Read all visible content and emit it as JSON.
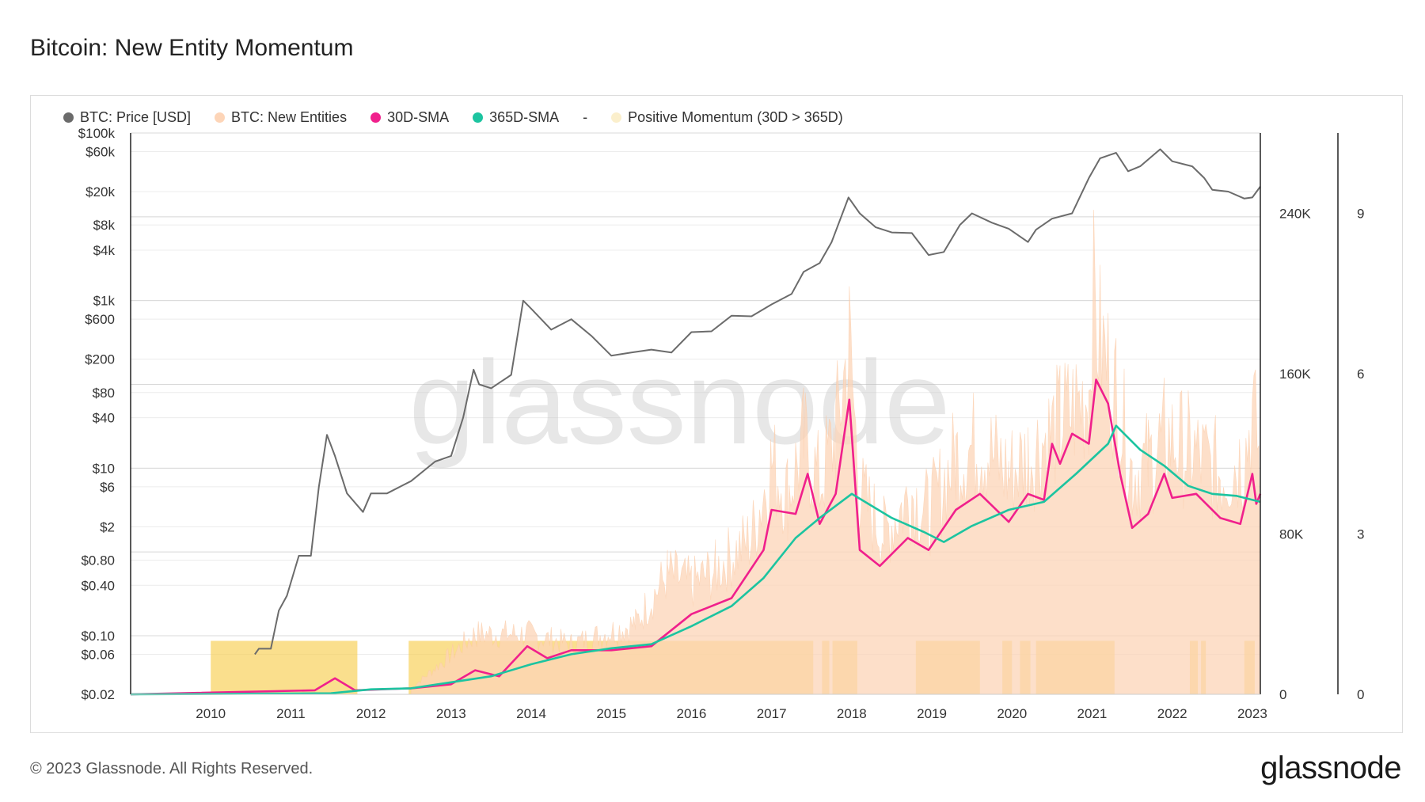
{
  "page": {
    "title": "Bitcoin: New Entity Momentum",
    "footer": "© 2023 Glassnode. All Rights Reserved.",
    "brand": "glassnode",
    "watermark": "glassnode"
  },
  "legend": [
    {
      "label": "BTC: Price [USD]",
      "color": "#6b6b6b"
    },
    {
      "label": "BTC: New Entities",
      "color": "#fdd5b8"
    },
    {
      "label": "30D-SMA",
      "color": "#f0208c"
    },
    {
      "label": "365D-SMA",
      "color": "#1cc4a0"
    },
    {
      "label": "-",
      "color": ""
    },
    {
      "label": "Positive Momentum (30D > 365D)",
      "color": "#fbefcc"
    }
  ],
  "chart_data": {
    "type": "line",
    "title": "Bitcoin: New Entity Momentum",
    "x_range": [
      2009.0,
      2023.1
    ],
    "x_ticks": [
      "2010",
      "2011",
      "2012",
      "2013",
      "2014",
      "2015",
      "2016",
      "2017",
      "2018",
      "2019",
      "2020",
      "2021",
      "2022",
      "2023"
    ],
    "y_left": {
      "scale": "log",
      "range": [
        0.02,
        100000
      ],
      "ticks": [
        {
          "v": 100000,
          "label": "$100k"
        },
        {
          "v": 60000,
          "label": "$60k"
        },
        {
          "v": 20000,
          "label": "$20k"
        },
        {
          "v": 8000,
          "label": "$8k"
        },
        {
          "v": 4000,
          "label": "$4k"
        },
        {
          "v": 1000,
          "label": "$1k"
        },
        {
          "v": 600,
          "label": "$600"
        },
        {
          "v": 200,
          "label": "$200"
        },
        {
          "v": 80,
          "label": "$80"
        },
        {
          "v": 40,
          "label": "$40"
        },
        {
          "v": 10,
          "label": "$10"
        },
        {
          "v": 6,
          "label": "$6"
        },
        {
          "v": 2,
          "label": "$2"
        },
        {
          "v": 0.8,
          "label": "$0.80"
        },
        {
          "v": 0.4,
          "label": "$0.40"
        },
        {
          "v": 0.1,
          "label": "$0.10"
        },
        {
          "v": 0.06,
          "label": "$0.06"
        },
        {
          "v": 0.02,
          "label": "$0.02"
        }
      ]
    },
    "y_right": {
      "scale": "linear",
      "range": [
        0,
        280000
      ],
      "ticks": [
        {
          "v": 240000,
          "label": "240K"
        },
        {
          "v": 160000,
          "label": "160K"
        },
        {
          "v": 80000,
          "label": "80K"
        },
        {
          "v": 0,
          "label": "0"
        }
      ]
    },
    "y_right2": {
      "scale": "linear",
      "range": [
        0,
        10.5
      ],
      "ticks": [
        {
          "v": 9,
          "label": "9"
        },
        {
          "v": 6,
          "label": "6"
        },
        {
          "v": 3,
          "label": "3"
        },
        {
          "v": 0,
          "label": "0"
        }
      ]
    },
    "series": [
      {
        "name": "BTC: Price [USD]",
        "axis": "left",
        "color": "#6b6b6b",
        "points": [
          [
            2010.55,
            0.06
          ],
          [
            2010.6,
            0.07
          ],
          [
            2010.75,
            0.07
          ],
          [
            2010.85,
            0.2
          ],
          [
            2010.95,
            0.3
          ],
          [
            2011.1,
            0.9
          ],
          [
            2011.25,
            0.9
          ],
          [
            2011.35,
            6
          ],
          [
            2011.45,
            25
          ],
          [
            2011.55,
            14
          ],
          [
            2011.7,
            5
          ],
          [
            2011.9,
            3
          ],
          [
            2012.0,
            5
          ],
          [
            2012.2,
            5
          ],
          [
            2012.5,
            7
          ],
          [
            2012.8,
            12
          ],
          [
            2013.0,
            14
          ],
          [
            2013.15,
            40
          ],
          [
            2013.28,
            150
          ],
          [
            2013.35,
            100
          ],
          [
            2013.5,
            90
          ],
          [
            2013.75,
            130
          ],
          [
            2013.9,
            1000
          ],
          [
            2014.0,
            800
          ],
          [
            2014.25,
            450
          ],
          [
            2014.5,
            600
          ],
          [
            2014.75,
            380
          ],
          [
            2015.0,
            220
          ],
          [
            2015.25,
            240
          ],
          [
            2015.5,
            260
          ],
          [
            2015.75,
            240
          ],
          [
            2016.0,
            420
          ],
          [
            2016.25,
            430
          ],
          [
            2016.5,
            660
          ],
          [
            2016.75,
            650
          ],
          [
            2017.0,
            900
          ],
          [
            2017.25,
            1200
          ],
          [
            2017.4,
            2200
          ],
          [
            2017.6,
            2800
          ],
          [
            2017.75,
            5000
          ],
          [
            2017.96,
            17000
          ],
          [
            2018.1,
            11000
          ],
          [
            2018.3,
            7500
          ],
          [
            2018.5,
            6500
          ],
          [
            2018.75,
            6400
          ],
          [
            2018.96,
            3500
          ],
          [
            2019.15,
            3800
          ],
          [
            2019.35,
            8000
          ],
          [
            2019.5,
            11000
          ],
          [
            2019.75,
            8500
          ],
          [
            2019.96,
            7200
          ],
          [
            2020.2,
            5000
          ],
          [
            2020.3,
            7000
          ],
          [
            2020.5,
            9500
          ],
          [
            2020.75,
            11000
          ],
          [
            2020.96,
            29000
          ],
          [
            2021.1,
            50000
          ],
          [
            2021.3,
            58000
          ],
          [
            2021.45,
            35000
          ],
          [
            2021.6,
            40000
          ],
          [
            2021.85,
            64000
          ],
          [
            2022.0,
            46000
          ],
          [
            2022.25,
            40000
          ],
          [
            2022.4,
            29000
          ],
          [
            2022.5,
            21000
          ],
          [
            2022.7,
            20000
          ],
          [
            2022.9,
            16500
          ],
          [
            2023.0,
            17000
          ],
          [
            2023.1,
            23000
          ]
        ]
      },
      {
        "name": "30D-SMA",
        "axis": "right",
        "color": "#f0208c",
        "points": [
          [
            2009.0,
            0
          ],
          [
            2011.3,
            2000
          ],
          [
            2011.55,
            8000
          ],
          [
            2011.8,
            2000
          ],
          [
            2012.5,
            3000
          ],
          [
            2013.0,
            5000
          ],
          [
            2013.3,
            12000
          ],
          [
            2013.6,
            9000
          ],
          [
            2013.95,
            24000
          ],
          [
            2014.2,
            18000
          ],
          [
            2014.5,
            22000
          ],
          [
            2015.0,
            22000
          ],
          [
            2015.5,
            24000
          ],
          [
            2016.0,
            40000
          ],
          [
            2016.5,
            48000
          ],
          [
            2016.9,
            72000
          ],
          [
            2017.0,
            92000
          ],
          [
            2017.3,
            90000
          ],
          [
            2017.45,
            110000
          ],
          [
            2017.6,
            85000
          ],
          [
            2017.8,
            100000
          ],
          [
            2017.97,
            147000
          ],
          [
            2018.1,
            72000
          ],
          [
            2018.35,
            64000
          ],
          [
            2018.7,
            78000
          ],
          [
            2018.96,
            72000
          ],
          [
            2019.3,
            92000
          ],
          [
            2019.6,
            100000
          ],
          [
            2019.96,
            86000
          ],
          [
            2020.2,
            100000
          ],
          [
            2020.4,
            97000
          ],
          [
            2020.5,
            125000
          ],
          [
            2020.6,
            115000
          ],
          [
            2020.75,
            130000
          ],
          [
            2020.96,
            125000
          ],
          [
            2021.05,
            157000
          ],
          [
            2021.2,
            145000
          ],
          [
            2021.35,
            110000
          ],
          [
            2021.5,
            83000
          ],
          [
            2021.7,
            90000
          ],
          [
            2021.9,
            110000
          ],
          [
            2022.0,
            98000
          ],
          [
            2022.3,
            100000
          ],
          [
            2022.6,
            88000
          ],
          [
            2022.85,
            85000
          ],
          [
            2023.0,
            110000
          ],
          [
            2023.05,
            95000
          ],
          [
            2023.1,
            100000
          ]
        ]
      },
      {
        "name": "365D-SMA",
        "axis": "right",
        "color": "#1cc4a0",
        "points": [
          [
            2009.0,
            0
          ],
          [
            2011.5,
            500
          ],
          [
            2012.0,
            2500
          ],
          [
            2012.5,
            3000
          ],
          [
            2013.0,
            6000
          ],
          [
            2013.5,
            9000
          ],
          [
            2014.0,
            15000
          ],
          [
            2014.5,
            20000
          ],
          [
            2015.0,
            23000
          ],
          [
            2015.5,
            25000
          ],
          [
            2016.0,
            34000
          ],
          [
            2016.5,
            44000
          ],
          [
            2016.9,
            58000
          ],
          [
            2017.3,
            78000
          ],
          [
            2017.6,
            88000
          ],
          [
            2018.0,
            100000
          ],
          [
            2018.5,
            88000
          ],
          [
            2018.9,
            81000
          ],
          [
            2019.15,
            76000
          ],
          [
            2019.5,
            84000
          ],
          [
            2019.96,
            92000
          ],
          [
            2020.4,
            96000
          ],
          [
            2020.8,
            110000
          ],
          [
            2021.2,
            125000
          ],
          [
            2021.3,
            134000
          ],
          [
            2021.6,
            122000
          ],
          [
            2021.9,
            114000
          ],
          [
            2022.2,
            104000
          ],
          [
            2022.5,
            100000
          ],
          [
            2022.8,
            99000
          ],
          [
            2023.1,
            96000
          ]
        ]
      }
    ],
    "new_entities_band": {
      "name": "BTC: New Entities",
      "axis": "right",
      "color": "#fdd5b8",
      "points": [
        [
          2012.5,
          3000
        ],
        [
          2013.3,
          30000
        ],
        [
          2013.95,
          30000
        ],
        [
          2014.5,
          25000
        ],
        [
          2015.3,
          35000
        ],
        [
          2015.7,
          60000
        ],
        [
          2016.0,
          55000
        ],
        [
          2016.3,
          62000
        ],
        [
          2016.75,
          78000
        ],
        [
          2017.0,
          115000
        ],
        [
          2017.2,
          100000
        ],
        [
          2017.4,
          125000
        ],
        [
          2017.6,
          105000
        ],
        [
          2017.8,
          130000
        ],
        [
          2017.97,
          175000
        ],
        [
          2018.1,
          100000
        ],
        [
          2018.4,
          80000
        ],
        [
          2018.75,
          100000
        ],
        [
          2018.96,
          90000
        ],
        [
          2019.3,
          118000
        ],
        [
          2019.6,
          125000
        ],
        [
          2019.96,
          110000
        ],
        [
          2020.2,
          118000
        ],
        [
          2020.6,
          135000
        ],
        [
          2020.96,
          150000
        ],
        [
          2021.0,
          200000
        ],
        [
          2021.1,
          175000
        ],
        [
          2021.3,
          150000
        ],
        [
          2021.5,
          110000
        ],
        [
          2021.7,
          115000
        ],
        [
          2021.9,
          128000
        ],
        [
          2022.2,
          122000
        ],
        [
          2022.6,
          110000
        ],
        [
          2022.9,
          118000
        ],
        [
          2023.0,
          140000
        ],
        [
          2023.1,
          120000
        ]
      ]
    },
    "positive_momentum_periods": [
      [
        2010.0,
        2011.83
      ],
      [
        2012.47,
        2017.52
      ],
      [
        2017.63,
        2017.72
      ],
      [
        2017.76,
        2018.07
      ],
      [
        2018.8,
        2019.6
      ],
      [
        2019.88,
        2020.0
      ],
      [
        2020.1,
        2020.23
      ],
      [
        2020.3,
        2021.28
      ],
      [
        2022.22,
        2022.32
      ],
      [
        2022.36,
        2022.42
      ],
      [
        2022.9,
        2023.03
      ]
    ]
  }
}
